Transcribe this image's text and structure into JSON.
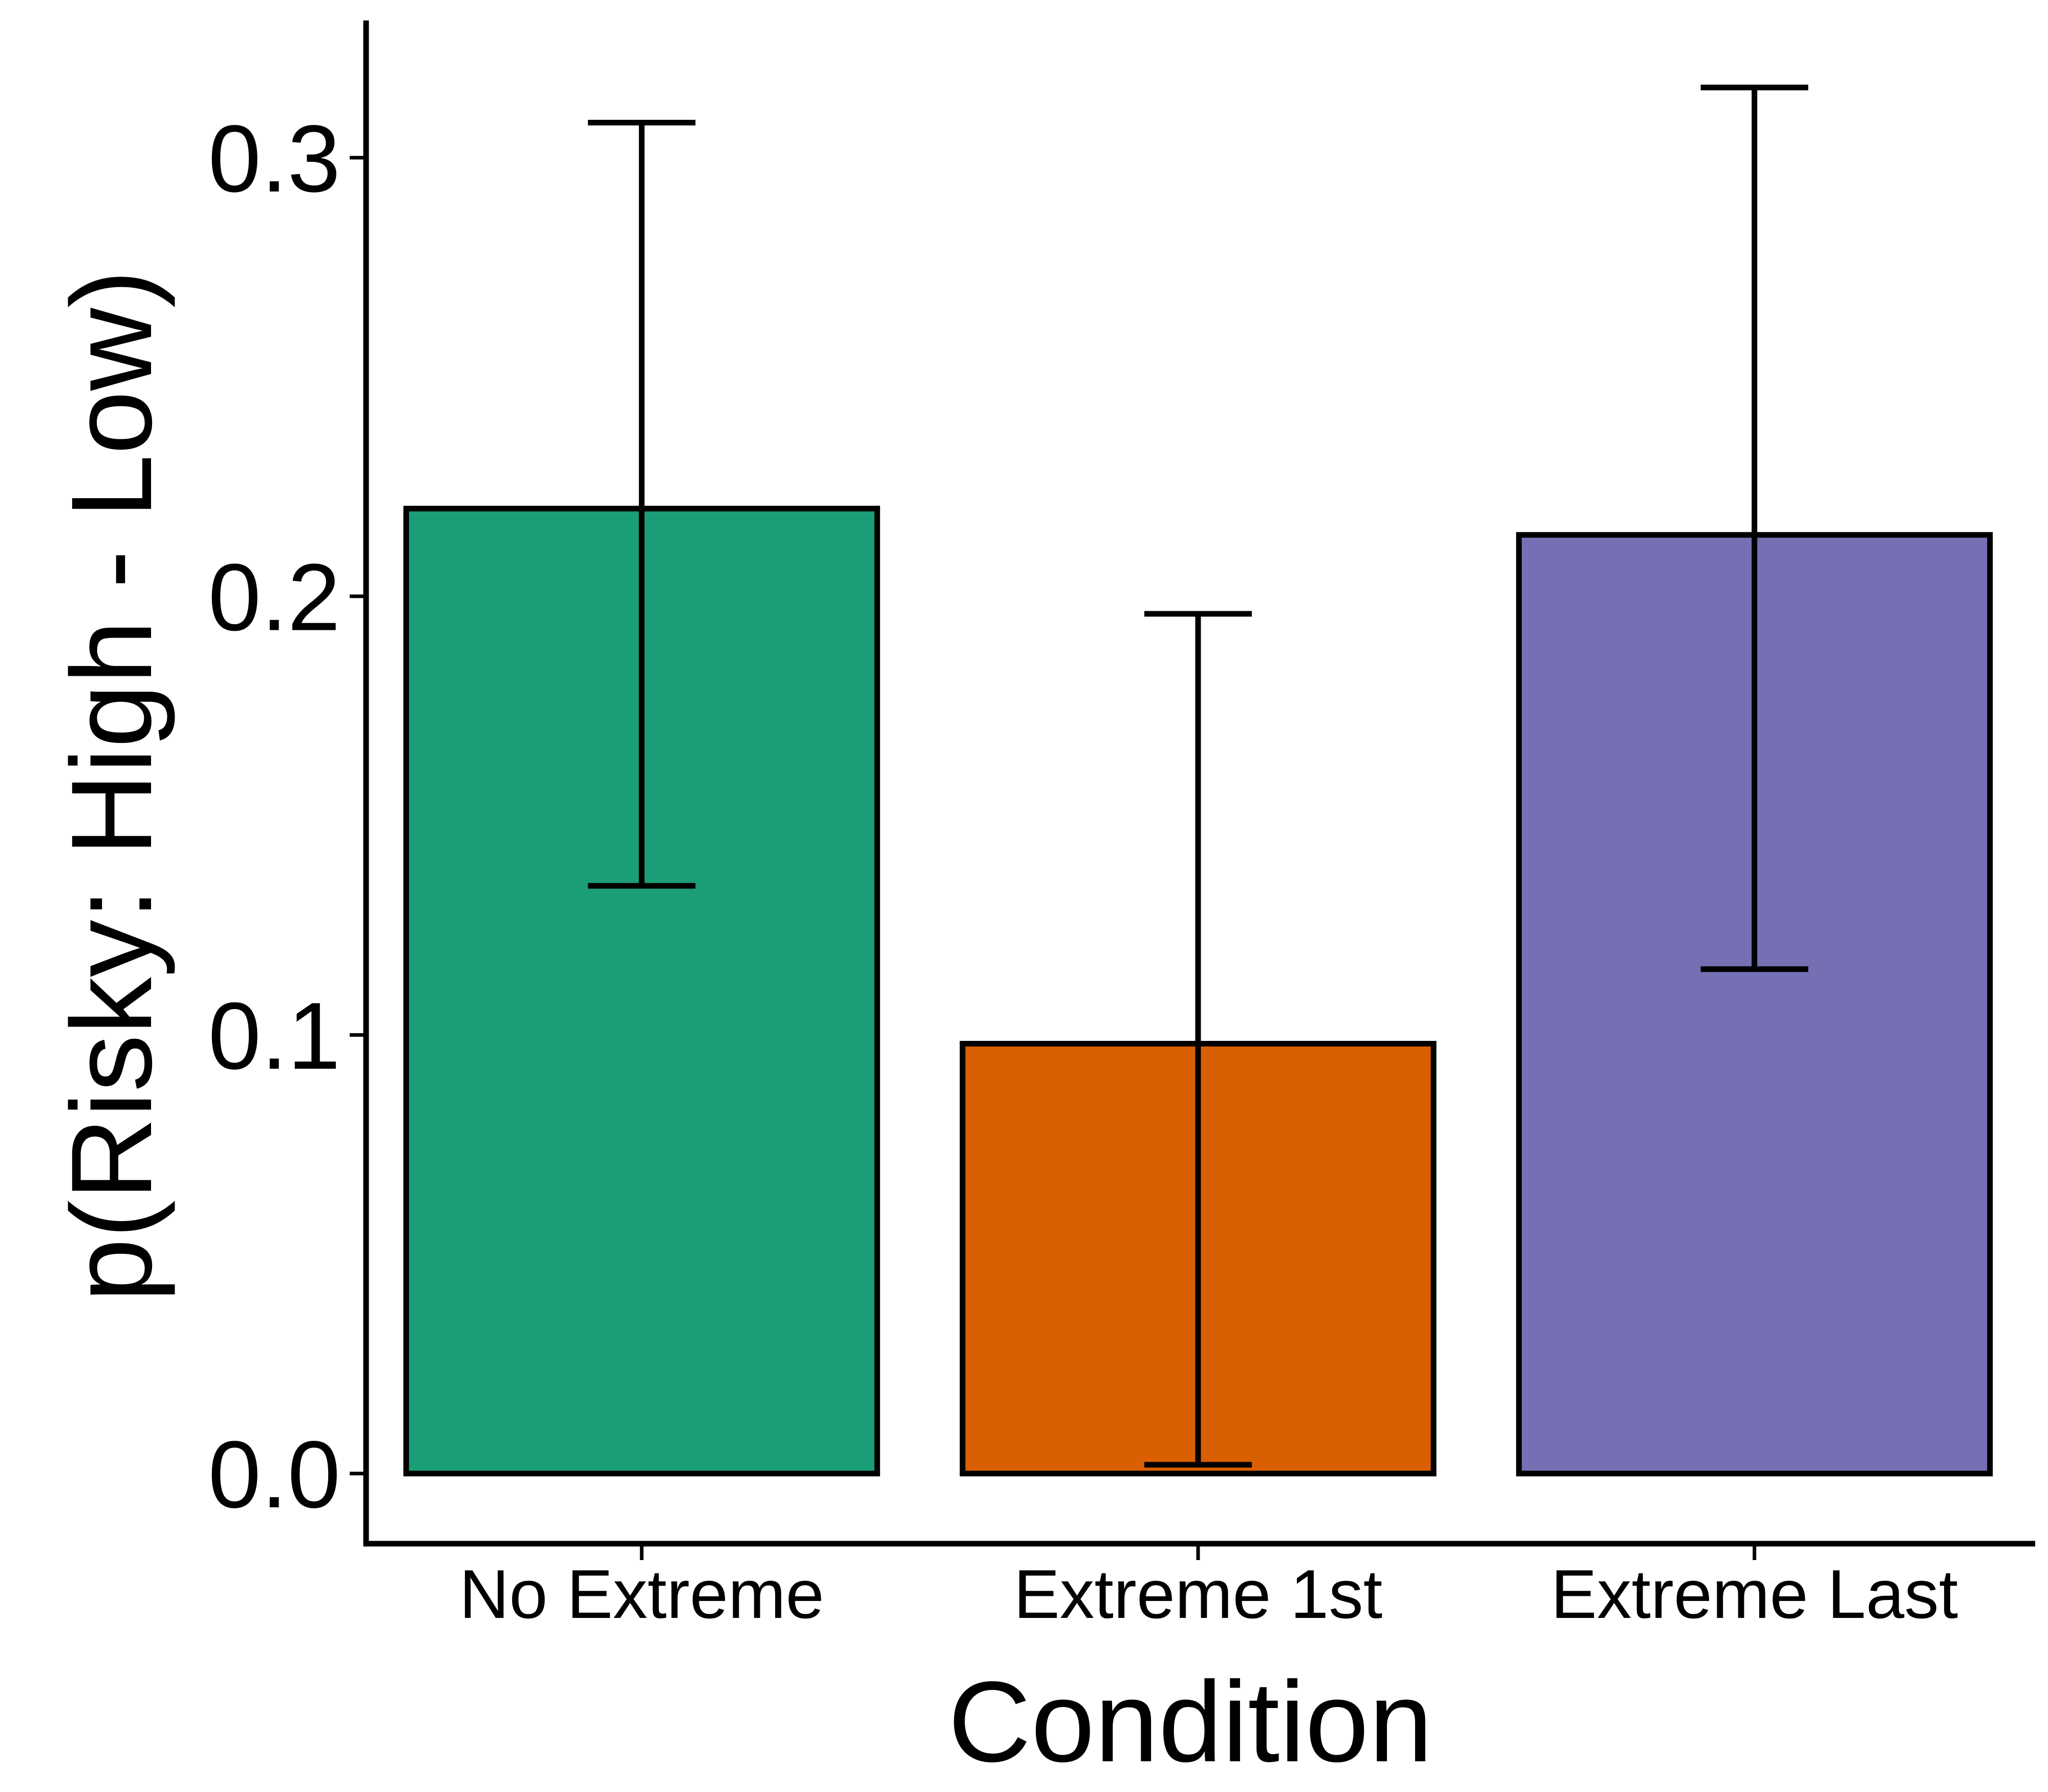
{
  "colors": {
    "axis": "#000000",
    "bar_outline": "#000000",
    "error_bar": "#000000",
    "background": "#ffffff"
  },
  "chart_data": {
    "type": "bar",
    "title": "",
    "xlabel": "Condition",
    "ylabel": "p(Risky: High - Low)",
    "categories": [
      "No Extreme",
      "Extreme 1st",
      "Extreme Last"
    ],
    "values": [
      0.22,
      0.098,
      0.214
    ],
    "error_low": [
      0.134,
      0.002,
      0.115
    ],
    "error_high": [
      0.308,
      0.196,
      0.316
    ],
    "bar_colors": [
      "#1b9e77",
      "#d95f02",
      "#7570b3"
    ],
    "ylim": [
      -0.016,
      0.33
    ],
    "yticks": [
      0.0,
      0.1,
      0.2,
      0.3
    ],
    "ytick_labels": [
      "0.0",
      "0.1",
      "0.2",
      "0.3"
    ],
    "grid": false,
    "legend": "none"
  }
}
